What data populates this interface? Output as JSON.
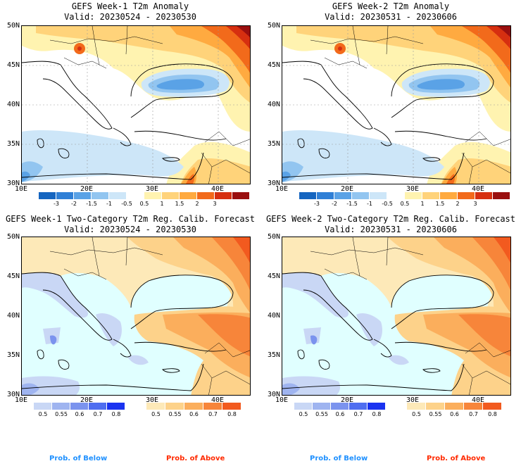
{
  "colors": {
    "ocean_anom": "#ffffff",
    "land_anom": "#ffffff",
    "prob_sea": "#e0ffff",
    "border": "#000000",
    "grid": "#999999",
    "below_label": "#1e90ff",
    "above_label": "#ff2a00"
  },
  "panels": [
    {
      "id": "week1-anom",
      "title": "GEFS Week-1 T2m Anomaly",
      "valid": "Valid: 20230524 - 20230530",
      "kind": "anomaly"
    },
    {
      "id": "week2-anom",
      "title": "GEFS Week-2 T2m Anomaly",
      "valid": "Valid: 20230531 - 20230606",
      "kind": "anomaly"
    },
    {
      "id": "week1-prob",
      "title": "GEFS Week-1 Two-Category T2m Reg. Calib. Forecast",
      "valid": "Valid: 20230524 - 20230530",
      "kind": "probability"
    },
    {
      "id": "week2-prob",
      "title": "GEFS Week-2 Two-Category T2m Reg. Calib. Forecast",
      "valid": "Valid: 20230531 - 20230606",
      "kind": "probability"
    }
  ],
  "axes": {
    "lat_labels": [
      "50N",
      "45N",
      "40N",
      "35N",
      "30N"
    ],
    "lon_labels": [
      "10E",
      "20E",
      "30E",
      "40E"
    ]
  },
  "anomaly_colorbar": {
    "labels": [
      "-3",
      "-2",
      "-1.5",
      "-1",
      "-0.5",
      "0.5",
      "1",
      "1.5",
      "2",
      "3"
    ],
    "colors": [
      "#1565c0",
      "#2f7fd6",
      "#5aa2e6",
      "#92c5f0",
      "#cde6f8",
      "#ffffff",
      "#fff3b0",
      "#ffd37a",
      "#ffaa40",
      "#f26a1b",
      "#d62f10",
      "#9a0f0f"
    ]
  },
  "below_colorbar": {
    "labels": [
      "0.5",
      "0.55",
      "0.6",
      "0.7",
      "0.8"
    ],
    "colors": [
      "#c9d7f5",
      "#9fb4f0",
      "#7b93ee",
      "#4f6ef0",
      "#1a33f0"
    ]
  },
  "above_colorbar": {
    "labels": [
      "0.5",
      "0.55",
      "0.6",
      "0.7",
      "0.8"
    ],
    "colors": [
      "#fde9b8",
      "#fdd28a",
      "#fbae5c",
      "#f7853a",
      "#f25a1f"
    ]
  },
  "legend": {
    "below": "Prob. of Below",
    "above": "Prob. of Above"
  }
}
